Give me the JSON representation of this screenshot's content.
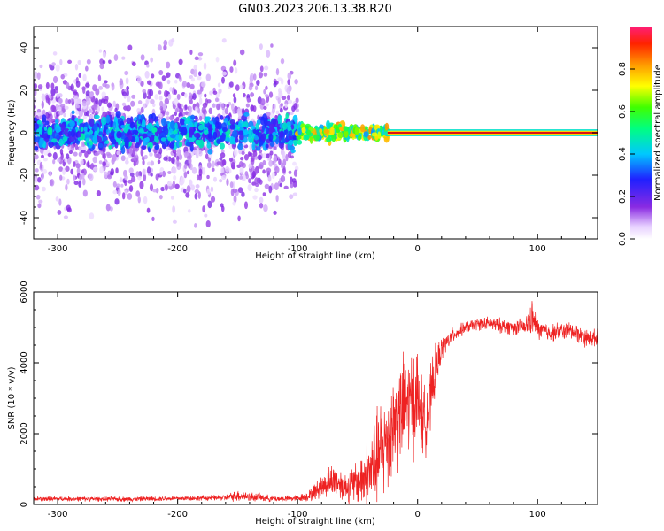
{
  "figure": {
    "title": "GN03.2023.206.13.38.R20"
  },
  "colors": {
    "snr_line": "#ee2222",
    "spectral_ridge": "#dd1111"
  },
  "chart_data": [
    {
      "type": "heatmap",
      "xlabel": "Height of straight line (km)",
      "ylabel": "Frequency (Hz)",
      "xlim": [
        -320,
        150
      ],
      "ylim": [
        -50,
        50
      ],
      "x_ticks": [
        -300,
        -200,
        -100,
        0,
        100
      ],
      "y_ticks": [
        -40,
        -20,
        0,
        20,
        40
      ],
      "colorbar": {
        "label": "Normalized spectral amplitude",
        "range": [
          0,
          1
        ],
        "ticks": [
          "0.0",
          "0.2",
          "0.4",
          "0.6",
          "0.8"
        ],
        "colormap": "white-purple-blue-cyan-green-yellow-orange-red-magenta"
      },
      "features": [
        {
          "x_range": [
            -320,
            -100
          ],
          "freq_range": [
            -50,
            50
          ],
          "level": 0.1,
          "note": "broad diffuse noise"
        },
        {
          "x_range": [
            -320,
            -100
          ],
          "freq_range": [
            -10,
            10
          ],
          "level": 0.35
        },
        {
          "x_range": [
            -100,
            -25
          ],
          "freq_range": [
            -5,
            5
          ],
          "level": 0.6
        },
        {
          "x_range": [
            -25,
            150
          ],
          "freq_range": [
            -1,
            1
          ],
          "level": 0.95
        }
      ]
    },
    {
      "type": "line",
      "xlabel": "Height of straight line (km)",
      "ylabel": "SNR (10 * v/v)",
      "xlim": [
        -320,
        150
      ],
      "ylim": [
        0,
        6000
      ],
      "x_ticks": [
        -300,
        -200,
        -100,
        0,
        100
      ],
      "y_ticks": [
        0,
        2000,
        4000,
        6000
      ],
      "series": [
        {
          "x": [
            -320,
            -300,
            -250,
            -200,
            -160,
            -150,
            -120,
            -100,
            -90,
            -80,
            -70,
            -60,
            -50,
            -40,
            -30,
            -20,
            -10,
            0,
            5,
            10,
            15,
            20,
            30,
            40,
            50,
            60,
            70,
            80,
            90,
            95,
            100,
            110,
            120,
            130,
            140,
            150
          ],
          "y": [
            150,
            160,
            150,
            170,
            190,
            250,
            160,
            170,
            250,
            500,
            700,
            500,
            600,
            900,
            1500,
            2300,
            2800,
            3000,
            2300,
            2800,
            3800,
            4400,
            4800,
            5000,
            5100,
            5100,
            5050,
            5000,
            5000,
            5300,
            4950,
            4850,
            4900,
            4900,
            4700,
            4700
          ],
          "spread": [
            80,
            80,
            80,
            80,
            100,
            200,
            100,
            100,
            200,
            400,
            600,
            500,
            800,
            1400,
            1800,
            1800,
            1800,
            1800,
            1200,
            1200,
            800,
            400,
            250,
            200,
            200,
            250,
            250,
            250,
            300,
            600,
            350,
            300,
            300,
            300,
            300,
            300
          ]
        }
      ]
    }
  ]
}
